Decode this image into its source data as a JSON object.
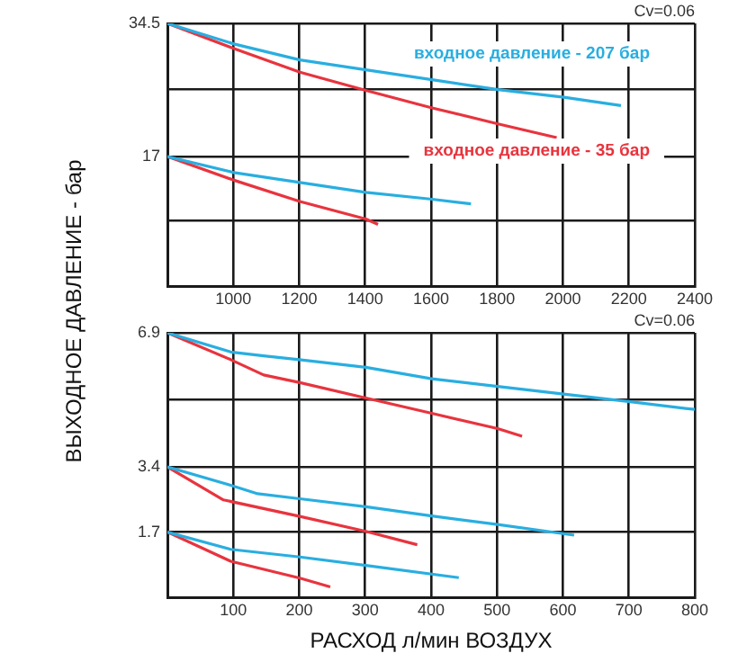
{
  "chart_data": [
    {
      "type": "line",
      "ylabel": "ВЫХОДНОЕ ДАВЛЕНИЕ - бар",
      "annotations": [
        "Cv=0.06"
      ],
      "xlim": [
        800,
        2400
      ],
      "xticks": [
        1000,
        1200,
        1400,
        1600,
        1800,
        2000,
        2200,
        2400
      ],
      "ylim": [
        0,
        34.5
      ],
      "yticks": [
        {
          "value": 8.625,
          "label": null
        },
        17,
        {
          "value": 25.875,
          "label": null
        },
        34.5
      ],
      "grid": true,
      "legend": "right",
      "marker": "none",
      "line_style": "solid",
      "series": [
        {
          "name": "входное давление - 207 бар",
          "color": "#29aee0",
          "x": [
            800,
            1002,
            1202,
            1402,
            1603,
            1803,
            2003,
            2176
          ],
          "values": [
            34.5,
            31.8,
            29.7,
            28.4,
            27.1,
            25.8,
            24.8,
            23.7
          ]
        },
        {
          "name": "входное давление - 35 бар",
          "color": "#e8343e",
          "x": [
            800,
            1002,
            1202,
            1402,
            1603,
            1803,
            1981
          ],
          "values": [
            34.5,
            31.2,
            28.1,
            25.7,
            23.4,
            21.3,
            19.5
          ]
        },
        {
          "color": "#29aee0",
          "x": [
            800,
            1002,
            1202,
            1402,
            1603,
            1721
          ],
          "values": [
            17,
            14.9,
            13.6,
            12.3,
            11.4,
            10.8
          ]
        },
        {
          "color": "#e8343e",
          "x": [
            800,
            1002,
            1202,
            1402,
            1439
          ],
          "values": [
            17,
            13.9,
            11.1,
            8.8,
            8.1
          ]
        }
      ]
    },
    {
      "type": "line",
      "xlabel": "РАСХОД л/мин ВОЗДУХ",
      "annotations": [
        "Cv=0.06"
      ],
      "xlim": [
        0,
        800
      ],
      "xticks": [
        100,
        200,
        300,
        400,
        500,
        600,
        700,
        800
      ],
      "ylim": [
        0,
        6.9
      ],
      "yticks": [
        1.7,
        3.4,
        {
          "value": 5.15,
          "label": null
        },
        6.9
      ],
      "grid": true,
      "marker": "none",
      "line_style": "solid",
      "series": [
        {
          "color": "#29aee0",
          "x": [
            0,
            96,
            146,
            200,
            301,
            401,
            501,
            601,
            702,
            800
          ],
          "values": [
            6.9,
            6.4,
            6.3,
            6.2,
            6.0,
            5.7,
            5.5,
            5.3,
            5.1,
            4.9
          ]
        },
        {
          "color": "#e8343e",
          "x": [
            0,
            96,
            146,
            201,
            301,
            401,
            501,
            538
          ],
          "values": [
            6.9,
            6.2,
            5.8,
            5.6,
            5.2,
            4.8,
            4.4,
            4.2
          ]
        },
        {
          "color": "#29aee0",
          "x": [
            0,
            96,
            137,
            201,
            301,
            401,
            501,
            617
          ],
          "values": [
            3.4,
            2.92,
            2.7,
            2.57,
            2.36,
            2.12,
            1.9,
            1.62
          ]
        },
        {
          "color": "#e8343e",
          "x": [
            0,
            85,
            201,
            301,
            379
          ],
          "values": [
            3.4,
            2.54,
            2.11,
            1.72,
            1.37
          ]
        },
        {
          "color": "#29aee0",
          "x": [
            0,
            96,
            201,
            301,
            442
          ],
          "values": [
            1.7,
            1.25,
            1.05,
            0.83,
            0.51
          ]
        },
        {
          "color": "#e8343e",
          "x": [
            0,
            96,
            201,
            247
          ],
          "values": [
            1.7,
            0.94,
            0.5,
            0.27
          ]
        }
      ]
    }
  ]
}
